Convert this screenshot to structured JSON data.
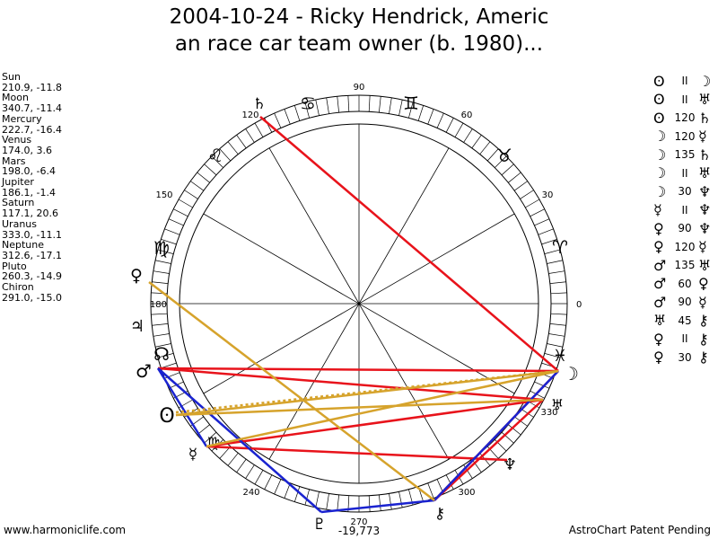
{
  "title_line1": "2004-10-24 - Ricky Hendrick, Americ",
  "title_line2": "an race car team owner (b. 1980)...",
  "planets": [
    {
      "name": "Sun",
      "coords": "210.9, -11.8"
    },
    {
      "name": "Moon",
      "coords": "340.7, -11.4"
    },
    {
      "name": "Mercury",
      "coords": "222.7, -16.4"
    },
    {
      "name": "Venus",
      "coords": "174.0, 3.6"
    },
    {
      "name": "Mars",
      "coords": "198.0, -6.4"
    },
    {
      "name": "Jupiter",
      "coords": "186.1, -1.4"
    },
    {
      "name": "Saturn",
      "coords": "117.1, 20.6"
    },
    {
      "name": "Uranus",
      "coords": "333.0, -11.1"
    },
    {
      "name": "Neptune",
      "coords": "312.6, -17.1"
    },
    {
      "name": "Pluto",
      "coords": "260.3, -14.9"
    },
    {
      "name": "Chiron",
      "coords": "291.0, -15.0"
    }
  ],
  "aspects": [
    {
      "p1": "sun",
      "aspect": "II",
      "p2": "moon"
    },
    {
      "p1": "sun",
      "aspect": "II",
      "p2": "uranus"
    },
    {
      "p1": "sun",
      "aspect": "120",
      "p2": "saturn"
    },
    {
      "p1": "moon",
      "aspect": "120",
      "p2": "mercury"
    },
    {
      "p1": "moon",
      "aspect": "135",
      "p2": "saturn"
    },
    {
      "p1": "moon",
      "aspect": "II",
      "p2": "uranus"
    },
    {
      "p1": "moon",
      "aspect": "30",
      "p2": "neptune"
    },
    {
      "p1": "mercury",
      "aspect": "II",
      "p2": "neptune"
    },
    {
      "p1": "venus",
      "aspect": "90",
      "p2": "neptune"
    },
    {
      "p1": "venus",
      "aspect": "120",
      "p2": "mercury"
    },
    {
      "p1": "mars",
      "aspect": "135",
      "p2": "uranus"
    },
    {
      "p1": "mars",
      "aspect": "60",
      "p2": "venus"
    },
    {
      "p1": "mars",
      "aspect": "90",
      "p2": "mercury"
    },
    {
      "p1": "uranus",
      "aspect": "45",
      "p2": "chiron"
    },
    {
      "p1": "venus",
      "aspect": "II",
      "p2": "chiron"
    },
    {
      "p1": "venus",
      "aspect": "30",
      "p2": "chiron"
    }
  ],
  "glyphs": {
    "sun": "ʘ",
    "moon": "☽",
    "mercury": "☿",
    "venus": "♀",
    "mars": "♂",
    "jupiter": "♃",
    "saturn": "♄",
    "uranus": "♅",
    "neptune": "♆",
    "pluto": "♇",
    "chiron": "⚷",
    "node": "☊",
    "aries": "♈",
    "taurus": "♉",
    "gemini": "♊",
    "cancer": "♋",
    "leo": "♌",
    "virgo": "♍"
  },
  "degree_labels": [
    "0",
    "30",
    "60",
    "90",
    "120",
    "150",
    "180",
    "240",
    "270",
    "300",
    "330"
  ],
  "bottom_value": "-19,773",
  "footer_left": "www.harmoniclife.com",
  "footer_right": "AstroChart Patent Pending",
  "colors": {
    "red": "#e8131b",
    "blue": "#1a23d0",
    "gold": "#d6a32c"
  }
}
